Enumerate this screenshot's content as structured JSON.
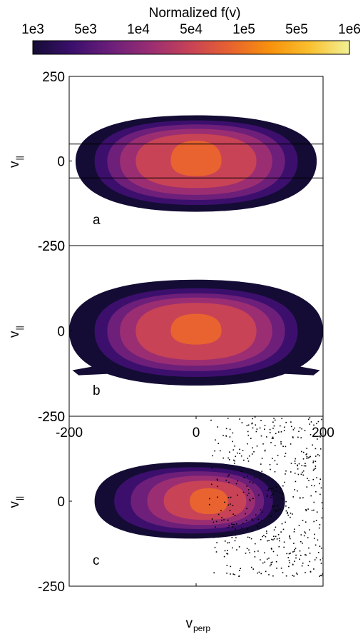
{
  "colorbar": {
    "title": "Normalized f(v)",
    "ticks": [
      "1e3",
      "5e3",
      "1e4",
      "5e4",
      "1e5",
      "5e5",
      "1e6"
    ],
    "colors": [
      "#140c34",
      "#3c0f6d",
      "#6d1f7a",
      "#9b2e72",
      "#c84355",
      "#e8632f",
      "#f8920c",
      "#f9c02f",
      "#f2f196"
    ]
  },
  "axes": {
    "ylabel": "v",
    "ylabel_sub": "||",
    "xlabel": "v",
    "xlabel_sub": "perp"
  },
  "chart_data": [
    {
      "type": "heatmap",
      "panel_label": "a",
      "xlim": [
        -200,
        200
      ],
      "ylim": [
        -250,
        250
      ],
      "yticks": [
        "250",
        "0",
        "-250"
      ],
      "y_tick_values": [
        250,
        0,
        -250
      ],
      "contour_levels": [
        "1e3",
        "5e3",
        "1e4",
        "5e4",
        "1e5",
        "5e5"
      ],
      "contour_half_widths": [
        190,
        160,
        140,
        120,
        95,
        40
      ],
      "contour_heights_up": [
        135,
        120,
        108,
        95,
        80,
        60
      ],
      "contour_heights_down": [
        150,
        130,
        115,
        100,
        80,
        45
      ],
      "hlines": [
        50,
        -50
      ]
    },
    {
      "type": "heatmap",
      "panel_label": "b",
      "xlim": [
        -200,
        200
      ],
      "ylim": [
        -250,
        250
      ],
      "yticks": [
        "250",
        "0",
        "-250"
      ],
      "y_tick_values": [
        250,
        0,
        -250
      ],
      "contour_levels": [
        "1e3",
        "5e3",
        "1e4",
        "5e4",
        "1e5",
        "5e5"
      ],
      "contour_half_widths": [
        200,
        160,
        140,
        120,
        95,
        40
      ],
      "contour_heights_up": [
        150,
        125,
        110,
        98,
        82,
        50
      ],
      "contour_heights_down": [
        160,
        135,
        118,
        102,
        85,
        40
      ]
    },
    {
      "type": "heatmap",
      "panel_label": "c",
      "xlim": [
        -200,
        200
      ],
      "ylim": [
        -250,
        250
      ],
      "xticks": [
        "-200",
        "0",
        "200"
      ],
      "x_tick_values": [
        -200,
        0,
        200
      ],
      "yticks": [
        "250",
        "0",
        "-250"
      ],
      "y_tick_values": [
        250,
        0,
        -250
      ],
      "contour_levels": [
        "1e3",
        "5e3",
        "1e4",
        "5e4",
        "1e5",
        "5e5"
      ],
      "scatter_region": {
        "x": [
          20,
          200
        ],
        "y": [
          -220,
          250
        ]
      }
    }
  ]
}
